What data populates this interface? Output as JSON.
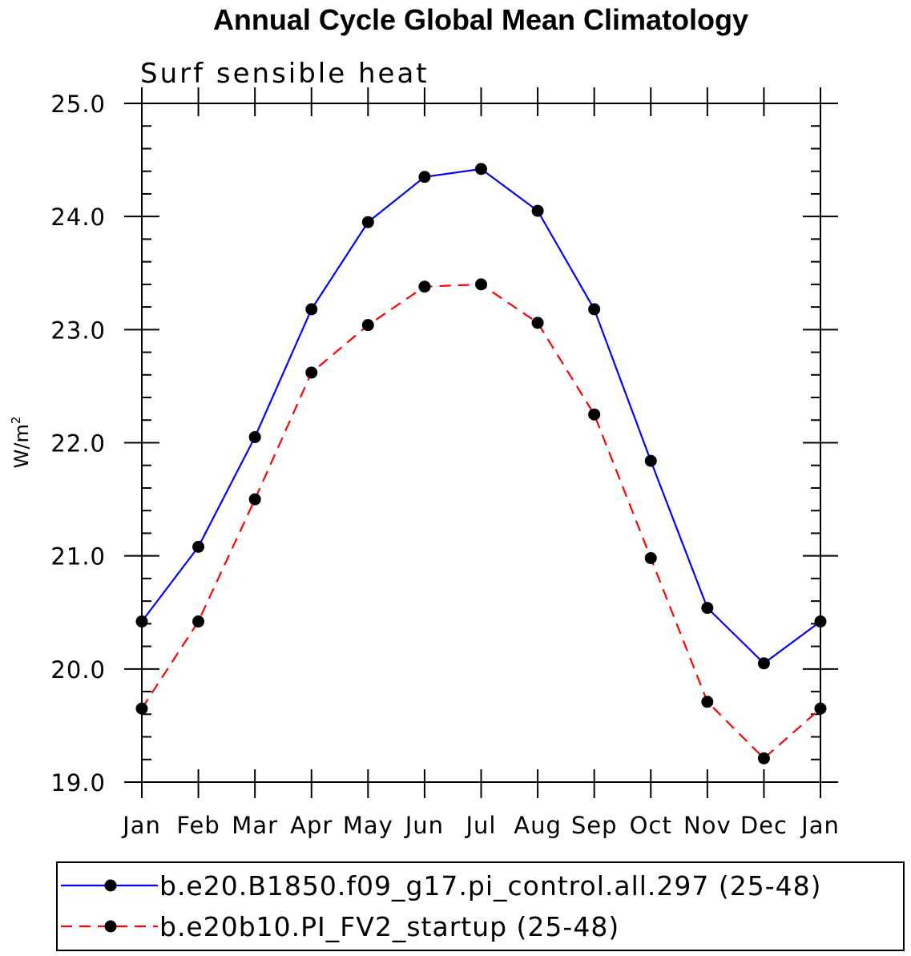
{
  "chart_data": {
    "type": "line",
    "title": "Annual Cycle Global Mean Climatology",
    "subtitle": "Surf sensible heat",
    "xlabel": "",
    "ylabel": "W/m",
    "ylabel_superscript": "2",
    "categories": [
      "Jan",
      "Feb",
      "Mar",
      "Apr",
      "May",
      "Jun",
      "Jul",
      "Aug",
      "Sep",
      "Oct",
      "Nov",
      "Dec",
      "Jan"
    ],
    "ylim": [
      19.0,
      25.0
    ],
    "yticks": [
      "19.0",
      "20.0",
      "21.0",
      "22.0",
      "23.0",
      "24.0",
      "25.0"
    ],
    "series": [
      {
        "name": "b.e20.B1850.f09_g17.pi_control.all.297 (25-48)",
        "color": "#0000ff",
        "dash": "solid",
        "marker": "circle",
        "values": [
          20.42,
          21.08,
          22.05,
          23.18,
          23.95,
          24.35,
          24.42,
          24.05,
          23.18,
          21.84,
          20.54,
          20.05,
          20.42
        ]
      },
      {
        "name": "b.e20b10.PI_FV2_startup (25-48)",
        "color": "#ff0000",
        "dash": "dashed",
        "marker": "circle",
        "values": [
          19.65,
          20.42,
          21.5,
          22.62,
          23.04,
          23.38,
          23.4,
          23.06,
          22.25,
          20.98,
          19.71,
          19.21,
          19.65
        ]
      }
    ],
    "legend_position": "bottom",
    "grid": false
  }
}
